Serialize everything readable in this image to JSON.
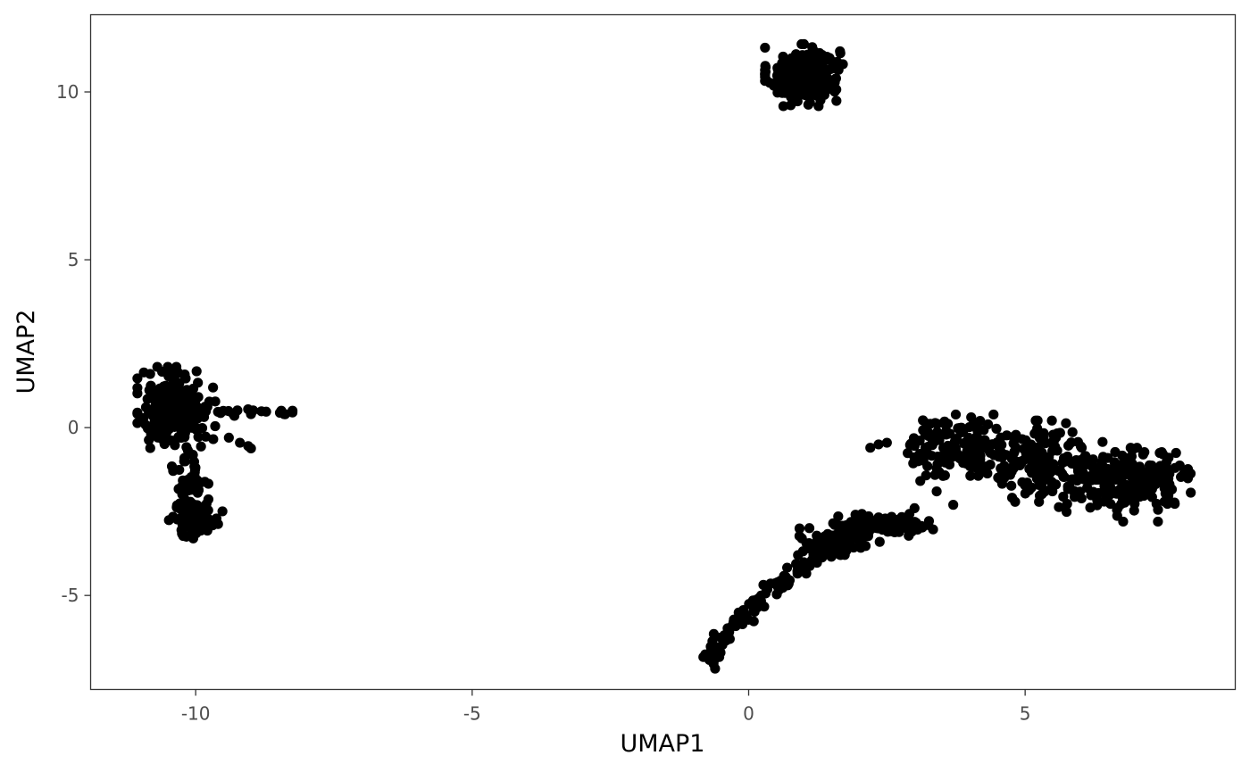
{
  "chart_data": {
    "type": "scatter",
    "title": "",
    "xlabel": "UMAP1",
    "ylabel": "UMAP2",
    "xlim": [
      -11.9,
      8.8
    ],
    "ylim": [
      -7.8,
      12.3
    ],
    "x_ticks": [
      -10,
      -5,
      0,
      5
    ],
    "x_tick_labels": [
      "-10",
      "-5",
      "0",
      "5"
    ],
    "y_ticks": [
      -5,
      0,
      5,
      10
    ],
    "y_tick_labels": [
      "-5",
      "0",
      "5",
      "10"
    ],
    "grid": false,
    "legend": "none",
    "point_color": "#000000",
    "panel_border_color": "#333333",
    "clusters": [
      {
        "center": [
          1.0,
          10.5
        ],
        "spread": [
          0.32,
          0.42
        ],
        "count": 240
      },
      {
        "center": [
          -10.35,
          0.6
        ],
        "spread": [
          0.32,
          0.55
        ],
        "count": 220
      },
      {
        "center": [
          -10.1,
          -1.6
        ],
        "spread": [
          0.15,
          0.6
        ],
        "count": 60
      },
      {
        "center": [
          -10.0,
          -2.75
        ],
        "spread": [
          0.22,
          0.25
        ],
        "count": 90
      },
      {
        "center": [
          3.8,
          -0.6
        ],
        "spread": [
          0.45,
          0.45
        ],
        "count": 150
      },
      {
        "center": [
          5.3,
          -1.0
        ],
        "spread": [
          0.5,
          0.55
        ],
        "count": 150
      },
      {
        "center": [
          6.6,
          -1.7
        ],
        "spread": [
          0.45,
          0.5
        ],
        "count": 150
      },
      {
        "center": [
          7.4,
          -1.5
        ],
        "spread": [
          0.3,
          0.35
        ],
        "count": 70
      },
      {
        "center": [
          2.5,
          -2.9
        ],
        "spread": [
          0.4,
          0.15
        ],
        "count": 70
      },
      {
        "center": [
          1.6,
          -3.4
        ],
        "spread": [
          0.35,
          0.25
        ],
        "count": 80
      }
    ],
    "paths": [
      {
        "points": [
          [
            -0.75,
            -7.0
          ],
          [
            -0.3,
            -6.0
          ],
          [
            0.3,
            -5.0
          ],
          [
            0.7,
            -4.5
          ],
          [
            1.2,
            -3.9
          ],
          [
            1.6,
            -3.3
          ],
          [
            2.1,
            -2.8
          ],
          [
            2.7,
            -2.9
          ]
        ],
        "count": 140,
        "jitter": 0.1
      },
      {
        "points": [
          [
            -9.6,
            0.5
          ],
          [
            -8.3,
            0.45
          ]
        ],
        "count": 14,
        "jitter": 0.05
      }
    ],
    "points": [
      [
        -9.5,
        0.5
      ],
      [
        -9.3,
        0.35
      ],
      [
        -9.0,
        0.4
      ],
      [
        -8.4,
        0.4
      ],
      [
        -8.25,
        0.45
      ],
      [
        -9.4,
        -0.3
      ],
      [
        -9.2,
        -0.45
      ],
      [
        -9.05,
        -0.55
      ],
      [
        -9.0,
        -0.62
      ],
      [
        2.2,
        -0.6
      ],
      [
        2.35,
        -0.5
      ],
      [
        2.5,
        -0.45
      ],
      [
        3.0,
        -2.4
      ],
      [
        3.4,
        -1.9
      ],
      [
        3.7,
        -2.3
      ]
    ]
  }
}
